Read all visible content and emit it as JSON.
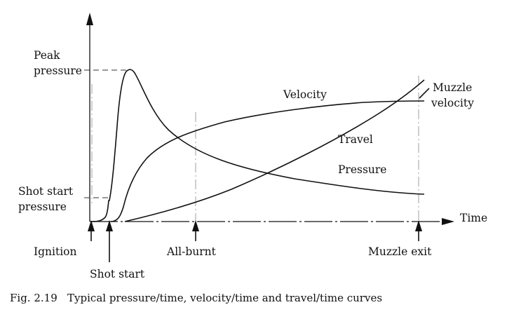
{
  "labels": {
    "peak_pressure_1": "Peak",
    "peak_pressure_2": "pressure",
    "shot_start_pressure_1": "Shot start",
    "shot_start_pressure_2": "pressure",
    "velocity": "Velocity",
    "muzzle_velocity_1": "Muzzle",
    "muzzle_velocity_2": "velocity",
    "travel": "Travel",
    "pressure": "Pressure",
    "time": "Time",
    "ignition": "Ignition",
    "shot_start": "Shot start",
    "all_burnt": "All-burnt",
    "muzzle_exit": "Muzzle exit"
  },
  "caption": "Fig. 2.19   Typical pressure/time, velocity/time and travel/time curves"
}
